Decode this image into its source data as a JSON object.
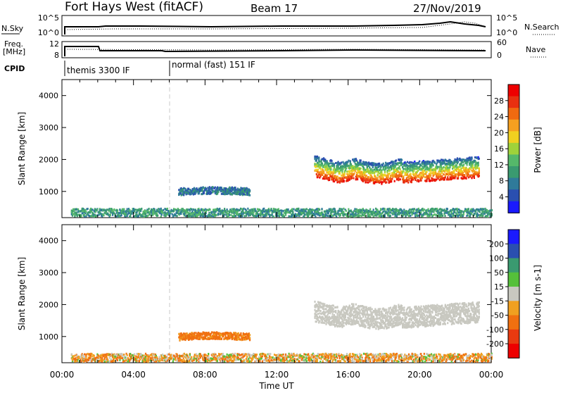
{
  "header": {
    "title": "Fort Hays West (fitACF)",
    "beam": "Beam 17",
    "date": "27/Nov/2019"
  },
  "top_panels": {
    "nsky_label": "N.Sky",
    "nsearch_label": "N.Search",
    "nsky_ticks": [
      "10^5",
      "10^0"
    ],
    "nsearch_ticks": [
      "10^5",
      "10^0"
    ],
    "freq_label_1": "Freq.",
    "freq_label_2": "[MHz]",
    "freq_ticks": [
      "12",
      "8"
    ],
    "nave_label": "Nave",
    "nave_ticks": [
      "60",
      "0"
    ],
    "cpid_label": "CPID",
    "cpid_segments": [
      {
        "name": "themis 3300 IF",
        "start_hour": 0,
        "end_hour": 6
      },
      {
        "name": "normal (fast) 151 IF",
        "start_hour": 6,
        "end_hour": 24
      }
    ]
  },
  "x_axis": {
    "label": "Time UT",
    "ticks": [
      "00:00",
      "04:00",
      "08:00",
      "12:00",
      "16:00",
      "20:00",
      "00:00"
    ]
  },
  "colors": {
    "power_scale": [
      "#1a1aff",
      "#2a4fb0",
      "#2f7a9a",
      "#3a9a70",
      "#55b86a",
      "#9fd23a",
      "#f0d020",
      "#f5a020",
      "#f06a10",
      "#e83010",
      "#ee0000"
    ],
    "velocity_scale": [
      "#1a1aff",
      "#2a4fb0",
      "#3a9a70",
      "#55c03a",
      "#c8c8c0",
      "#f0a020",
      "#f07010",
      "#e83a10",
      "#ee0000"
    ]
  },
  "chart_data": [
    {
      "type": "heatmap",
      "panel": "power",
      "ylabel": "Slant Range [km]",
      "xlabel": "",
      "xlim": [
        0,
        24
      ],
      "ylim": [
        180,
        4500
      ],
      "yticks": [
        1000,
        2000,
        3000,
        4000
      ],
      "colorbar": {
        "label": "Power [dB]",
        "range": [
          0,
          32
        ],
        "ticks": [
          4,
          8,
          12,
          16,
          20,
          24,
          28
        ]
      },
      "features": [
        {
          "feature": "near-range ground scatter",
          "t_start": 0.5,
          "t_end": 24,
          "range_min": 200,
          "range_max": 450,
          "power_db": 10
        },
        {
          "feature": "morning band",
          "t_start": 6.5,
          "t_end": 10.5,
          "range_min": 850,
          "range_max": 1100,
          "power_db": 7
        },
        {
          "feature": "evening band",
          "t_start": 14.1,
          "t_end": 23.3,
          "range_min": 1200,
          "range_max": 2100,
          "power_db": 24
        }
      ]
    },
    {
      "type": "heatmap",
      "panel": "velocity",
      "ylabel": "Slant Range [km]",
      "xlabel": "Time UT",
      "xlim": [
        0,
        24
      ],
      "ylim": [
        180,
        4500
      ],
      "yticks": [
        1000,
        2000,
        3000,
        4000
      ],
      "colorbar": {
        "label": "Velocity [m s-1]",
        "range": [
          -250,
          250
        ],
        "ticks": [
          200,
          100,
          50,
          15,
          -15,
          -50,
          -100,
          -200
        ]
      },
      "features": [
        {
          "feature": "near-range ground scatter",
          "t_start": 0.5,
          "t_end": 24,
          "range_min": 200,
          "range_max": 450,
          "velocity": -40
        },
        {
          "feature": "morning band",
          "t_start": 6.5,
          "t_end": 10.5,
          "range_min": 850,
          "range_max": 1100,
          "velocity": -60
        },
        {
          "feature": "evening band",
          "t_start": 14.1,
          "t_end": 23.3,
          "range_min": 1200,
          "range_max": 2100,
          "velocity": 0
        }
      ]
    }
  ]
}
